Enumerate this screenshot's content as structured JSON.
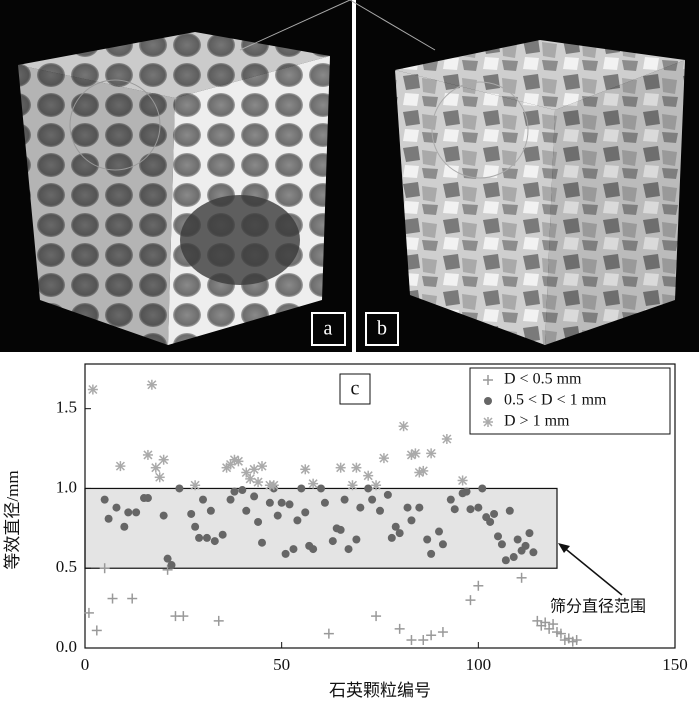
{
  "panels": {
    "a": "a",
    "b": "b"
  },
  "chart_data": {
    "type": "scatter",
    "panel_label": "c",
    "xlabel": "石英颗粒编号",
    "ylabel": "等效直径/mm",
    "annotation": "筛分直径范围",
    "xlim": [
      0,
      150
    ],
    "ylim": [
      0,
      1.78
    ],
    "xticks": [
      0,
      50,
      100,
      150
    ],
    "yticks": [
      {
        "value": 0,
        "label": "0.0"
      },
      0.5,
      {
        "value": 1,
        "label": "1.0"
      },
      1.5
    ],
    "band": {
      "x": [
        0,
        120
      ],
      "y": [
        0.5,
        1.0
      ],
      "color": "#e4e4e4"
    },
    "legend": "upper right",
    "series": [
      {
        "name": "D < 0.5 mm",
        "color": "#999999",
        "marker": "plus",
        "x": [
          1,
          3,
          5,
          7,
          12,
          21,
          23,
          25,
          34,
          62,
          74,
          80,
          83,
          86,
          88,
          91,
          98,
          100,
          111,
          115,
          116,
          117,
          118,
          119,
          120,
          121,
          122,
          123,
          124,
          125
        ],
        "values": [
          0.22,
          0.11,
          0.5,
          0.31,
          0.31,
          0.49,
          0.2,
          0.2,
          0.17,
          0.09,
          0.2,
          0.12,
          0.05,
          0.05,
          0.08,
          0.1,
          0.3,
          0.39,
          0.44,
          0.17,
          0.14,
          0.16,
          0.12,
          0.15,
          0.1,
          0.09,
          0.05,
          0.06,
          0.04,
          0.05
        ]
      },
      {
        "name": "0.5 < D < 1 mm",
        "color": "#666666",
        "marker": "dot",
        "x": [
          5,
          6,
          8,
          10,
          11,
          13,
          15,
          16,
          20,
          21,
          22,
          24,
          27,
          28,
          29,
          30,
          31,
          32,
          33,
          35,
          37,
          38,
          40,
          41,
          43,
          44,
          45,
          47,
          48,
          49,
          50,
          51,
          52,
          53,
          54,
          55,
          56,
          57,
          58,
          60,
          61,
          63,
          64,
          65,
          66,
          67,
          69,
          70,
          72,
          73,
          75,
          77,
          78,
          79,
          80,
          82,
          83,
          85,
          87,
          88,
          90,
          91,
          93,
          94,
          96,
          97,
          98,
          100,
          101,
          102,
          103,
          104,
          105,
          106,
          107,
          108,
          109,
          110,
          111,
          112,
          113,
          114
        ],
        "values": [
          0.93,
          0.81,
          0.88,
          0.76,
          0.85,
          0.85,
          0.94,
          0.94,
          0.83,
          0.56,
          0.52,
          1.0,
          0.84,
          0.76,
          0.69,
          0.93,
          0.69,
          0.86,
          0.67,
          0.71,
          0.93,
          0.98,
          0.99,
          0.86,
          0.95,
          0.79,
          0.66,
          0.91,
          1.0,
          0.83,
          0.91,
          0.59,
          0.9,
          0.62,
          0.8,
          1.0,
          0.85,
          0.64,
          0.62,
          1.0,
          0.91,
          0.67,
          0.75,
          0.74,
          0.93,
          0.62,
          0.68,
          0.88,
          1.0,
          0.93,
          0.86,
          0.96,
          0.69,
          0.76,
          0.72,
          0.88,
          0.8,
          0.88,
          0.68,
          0.59,
          0.73,
          0.65,
          0.93,
          0.87,
          0.97,
          0.98,
          0.87,
          0.88,
          1.0,
          0.82,
          0.79,
          0.84,
          0.7,
          0.65,
          0.55,
          0.86,
          0.57,
          0.68,
          0.61,
          0.64,
          0.72,
          0.6
        ]
      },
      {
        "name": "D > 1 mm",
        "color": "#aaaaaa",
        "marker": "star",
        "x": [
          2,
          9,
          16,
          17,
          18,
          19,
          20,
          28,
          36,
          37,
          38,
          39,
          41,
          42,
          43,
          44,
          45,
          47,
          48,
          56,
          58,
          65,
          68,
          69,
          72,
          74,
          76,
          81,
          83,
          84,
          85,
          86,
          88,
          92,
          96
        ],
        "values": [
          1.62,
          1.14,
          1.21,
          1.65,
          1.13,
          1.07,
          1.18,
          1.02,
          1.13,
          1.15,
          1.18,
          1.17,
          1.1,
          1.06,
          1.12,
          1.04,
          1.14,
          1.02,
          1.02,
          1.12,
          1.03,
          1.13,
          1.02,
          1.13,
          1.08,
          1.02,
          1.19,
          1.39,
          1.21,
          1.22,
          1.1,
          1.11,
          1.22,
          1.31,
          1.05
        ]
      }
    ]
  }
}
